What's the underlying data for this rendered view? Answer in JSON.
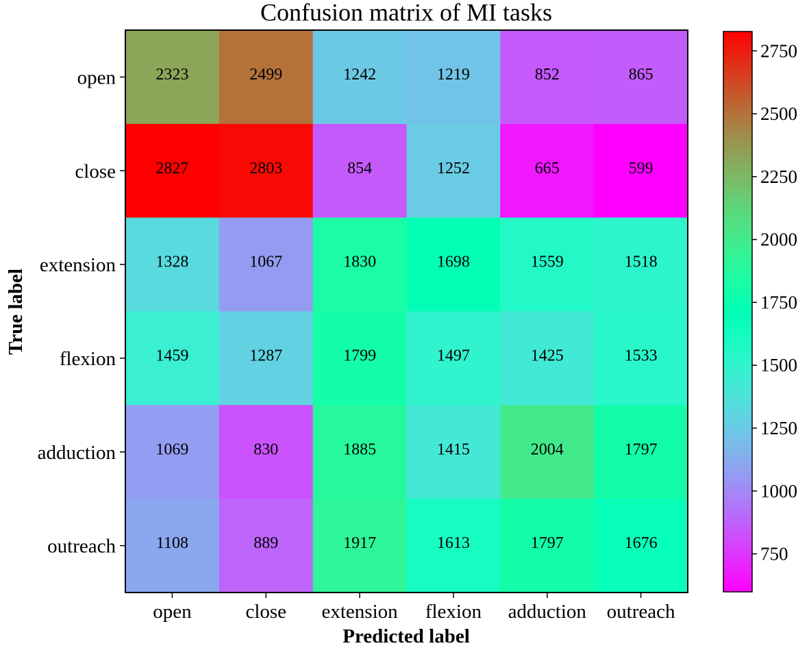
{
  "chart_data": {
    "type": "heatmap",
    "title": "Confusion matrix of MI tasks",
    "xlabel": "Predicted label",
    "ylabel": "True label",
    "x_categories": [
      "open",
      "close",
      "extension",
      "flexion",
      "adduction",
      "outreach"
    ],
    "y_categories": [
      "open",
      "close",
      "extension",
      "flexion",
      "adduction",
      "outreach"
    ],
    "values": [
      [
        2323,
        2499,
        1242,
        1219,
        852,
        865
      ],
      [
        2827,
        2803,
        854,
        1252,
        665,
        599
      ],
      [
        1328,
        1067,
        1830,
        1698,
        1559,
        1518
      ],
      [
        1459,
        1287,
        1799,
        1497,
        1425,
        1533
      ],
      [
        1069,
        830,
        1885,
        1415,
        2004,
        1797
      ],
      [
        1108,
        889,
        1917,
        1613,
        1797,
        1676
      ]
    ],
    "colormap": "rainbow",
    "colorbar": {
      "min": 599,
      "max": 2827,
      "ticks": [
        750,
        1000,
        1250,
        1500,
        1750,
        2000,
        2250,
        2500,
        2750
      ]
    }
  }
}
